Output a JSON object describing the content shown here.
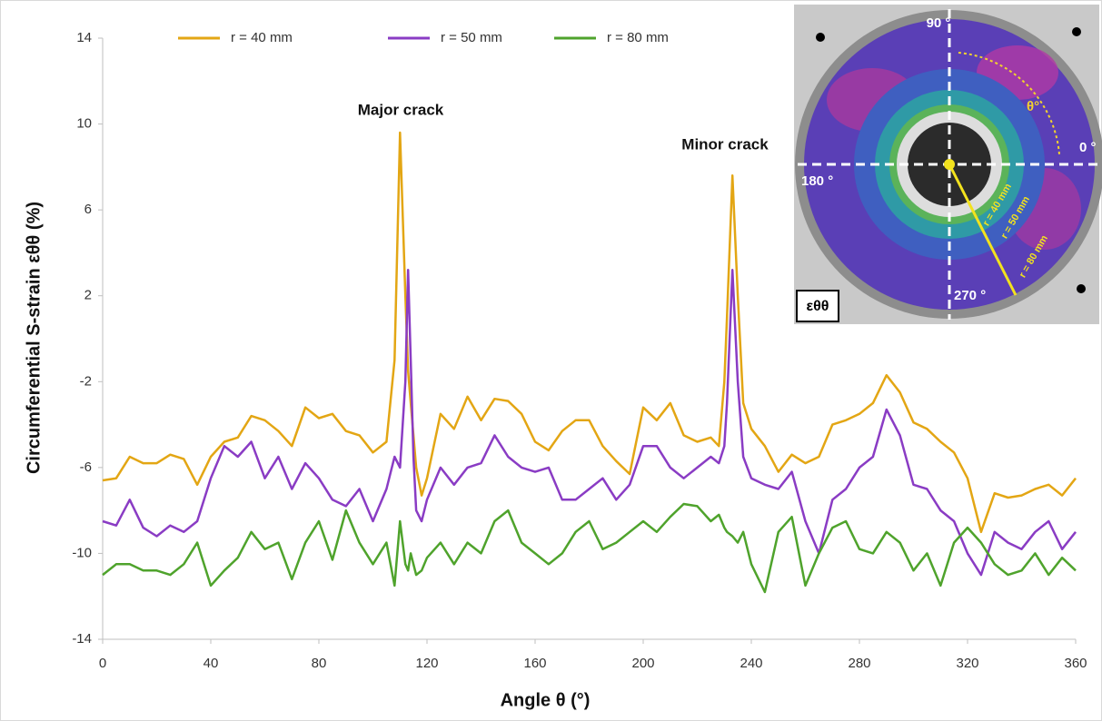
{
  "chart_data": {
    "type": "line",
    "x_label": "Angle θ (°)",
    "y_label": "Circumferential S-strain εθθ (%)",
    "annotations": [
      "Major crack",
      "Minor crack"
    ],
    "xlim": [
      0,
      360
    ],
    "xticks": [
      0,
      40,
      80,
      120,
      160,
      200,
      240,
      280,
      320,
      360
    ],
    "ylim": [
      -14,
      14
    ],
    "yticks": [
      -14,
      -10,
      -6,
      -2,
      2,
      6,
      10,
      14
    ],
    "grid": false,
    "legend": "top",
    "x": [
      0,
      5,
      10,
      15,
      20,
      25,
      30,
      35,
      40,
      45,
      50,
      55,
      60,
      65,
      70,
      75,
      80,
      85,
      90,
      95,
      100,
      105,
      108,
      110,
      112,
      113,
      114,
      115,
      116,
      118,
      120,
      125,
      130,
      135,
      140,
      145,
      150,
      155,
      160,
      165,
      170,
      175,
      180,
      185,
      190,
      195,
      200,
      205,
      210,
      215,
      220,
      225,
      228,
      230,
      231,
      233,
      235,
      237,
      240,
      245,
      250,
      255,
      260,
      265,
      270,
      275,
      280,
      285,
      290,
      295,
      300,
      305,
      310,
      315,
      320,
      325,
      330,
      335,
      340,
      345,
      350,
      355,
      360
    ],
    "series": [
      {
        "name": "r = 40 mm",
        "color": "#E3A614",
        "values": [
          -6.6,
          -6.5,
          -5.5,
          -5.8,
          -5.8,
          -5.4,
          -5.6,
          -6.8,
          -5.5,
          -4.8,
          -4.6,
          -3.6,
          -3.8,
          -4.3,
          -5.0,
          -3.2,
          -3.7,
          -3.5,
          -4.3,
          -4.5,
          -5.3,
          -4.8,
          -1.0,
          9.6,
          2.0,
          -1.5,
          -3.0,
          -4.5,
          -6.0,
          -7.3,
          -6.5,
          -3.5,
          -4.2,
          -2.7,
          -3.8,
          -2.8,
          -2.9,
          -3.5,
          -4.8,
          -5.2,
          -4.3,
          -3.8,
          -3.8,
          -5.0,
          -5.7,
          -6.3,
          -3.2,
          -3.8,
          -3.0,
          -4.5,
          -4.8,
          -4.6,
          -5.0,
          -2.0,
          1.0,
          7.6,
          2.0,
          -3.0,
          -4.2,
          -5.0,
          -6.2,
          -5.4,
          -5.8,
          -5.5,
          -4.0,
          -3.8,
          -3.5,
          -3.0,
          -1.7,
          -2.5,
          -3.9,
          -4.2,
          -4.8,
          -5.3,
          -6.5,
          -9.0,
          -7.2,
          -7.4,
          -7.3,
          -7.0,
          -6.8,
          -7.3,
          -6.5
        ]
      },
      {
        "name": "r = 50 mm",
        "color": "#8A3CC4",
        "values": [
          -8.5,
          -8.7,
          -7.5,
          -8.8,
          -9.2,
          -8.7,
          -9.0,
          -8.5,
          -6.5,
          -5.0,
          -5.5,
          -4.8,
          -6.5,
          -5.5,
          -7.0,
          -5.8,
          -6.5,
          -7.5,
          -7.8,
          -7.0,
          -8.5,
          -7.0,
          -5.5,
          -6.0,
          -2.0,
          3.2,
          -1.0,
          -5.5,
          -8.0,
          -8.5,
          -7.5,
          -6.0,
          -6.8,
          -6.0,
          -5.8,
          -4.5,
          -5.5,
          -6.0,
          -6.2,
          -6.0,
          -7.5,
          -7.5,
          -7.0,
          -6.5,
          -7.5,
          -6.8,
          -5.0,
          -5.0,
          -6.0,
          -6.5,
          -6.0,
          -5.5,
          -5.8,
          -5.0,
          -3.0,
          3.2,
          -2.0,
          -5.5,
          -6.5,
          -6.8,
          -7.0,
          -6.2,
          -8.5,
          -10.0,
          -7.5,
          -7.0,
          -6.0,
          -5.5,
          -3.3,
          -4.5,
          -6.8,
          -7.0,
          -8.0,
          -8.5,
          -10.0,
          -11.0,
          -9.0,
          -9.5,
          -9.8,
          -9.0,
          -8.5,
          -9.8,
          -9.0
        ]
      },
      {
        "name": "r = 80 mm",
        "color": "#4FA32C",
        "values": [
          -11.0,
          -10.5,
          -10.5,
          -10.8,
          -10.8,
          -11.0,
          -10.5,
          -9.5,
          -11.5,
          -10.8,
          -10.2,
          -9.0,
          -9.8,
          -9.5,
          -11.2,
          -9.5,
          -8.5,
          -10.3,
          -8.0,
          -9.5,
          -10.5,
          -9.5,
          -11.5,
          -8.5,
          -10.5,
          -10.8,
          -10.0,
          -10.5,
          -11.0,
          -10.8,
          -10.2,
          -9.5,
          -10.5,
          -9.5,
          -10.0,
          -8.5,
          -8.0,
          -9.5,
          -10.0,
          -10.5,
          -10.0,
          -9.0,
          -8.5,
          -9.8,
          -9.5,
          -9.0,
          -8.5,
          -9.0,
          -8.3,
          -7.7,
          -7.8,
          -8.5,
          -8.2,
          -8.8,
          -9.0,
          -9.2,
          -9.5,
          -9.0,
          -10.5,
          -11.8,
          -9.0,
          -8.3,
          -11.5,
          -10.0,
          -8.8,
          -8.5,
          -9.8,
          -10.0,
          -9.0,
          -9.5,
          -10.8,
          -10.0,
          -11.5,
          -9.5,
          -8.8,
          -9.5,
          -10.5,
          -11.0,
          -10.8,
          -10.0,
          -11.0,
          -10.2,
          -10.8
        ]
      }
    ]
  },
  "inset": {
    "labels": [
      "90 °",
      "0 °",
      "180 °",
      "270 °",
      "θ°",
      "r = 40 mm",
      "r = 50 mm",
      "r = 80 mm"
    ],
    "symbol": "εθθ"
  }
}
